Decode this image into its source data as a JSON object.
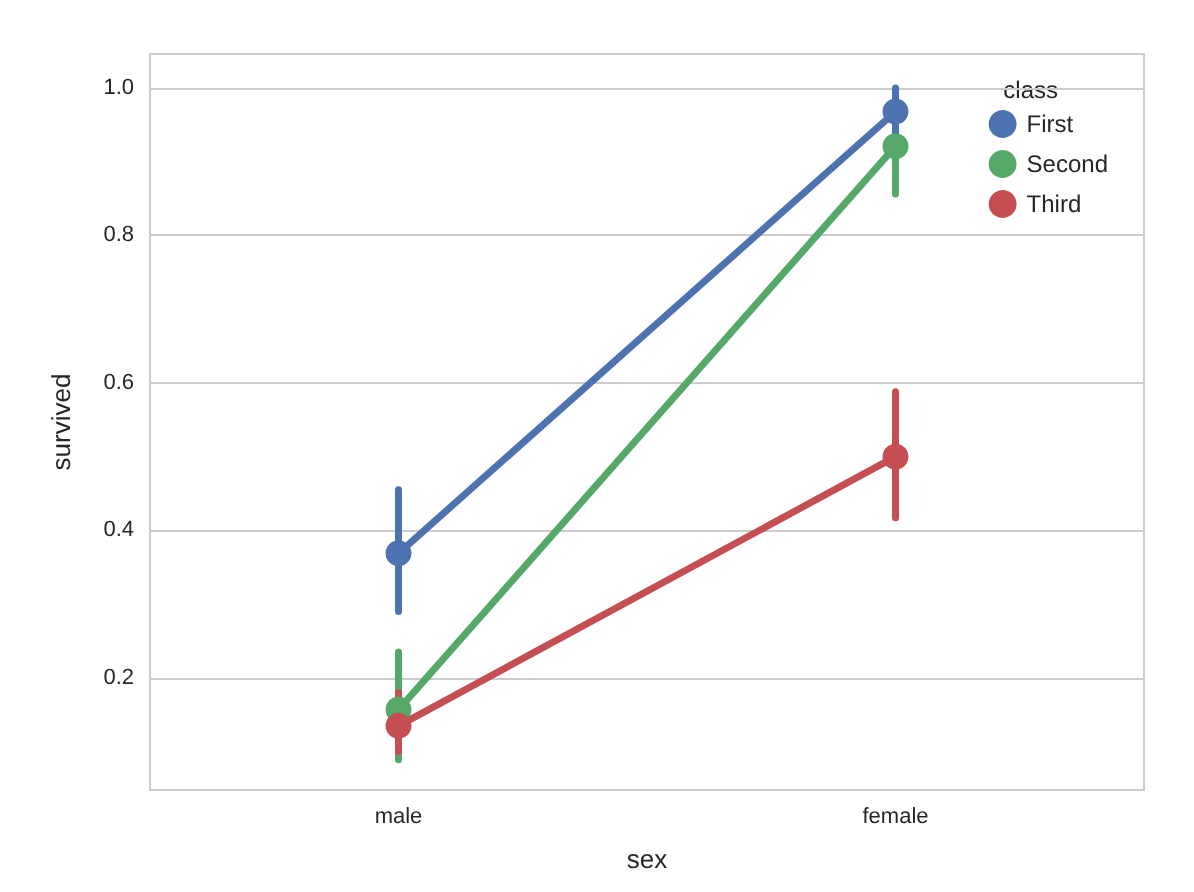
{
  "chart_data": {
    "type": "line",
    "xlabel": "sex",
    "ylabel": "survived",
    "legend_title": "class",
    "categories": [
      "male",
      "female"
    ],
    "series": [
      {
        "name": "First",
        "color": "#4c72b0",
        "values": [
          0.369,
          0.968
        ],
        "errors": [
          [
            0.29,
            0.455
          ],
          [
            0.935,
            1.0
          ]
        ]
      },
      {
        "name": "Second",
        "color": "#55a868",
        "values": [
          0.157,
          0.921
        ],
        "errors": [
          [
            0.089,
            0.235
          ],
          [
            0.856,
            0.921
          ]
        ]
      },
      {
        "name": "Third",
        "color": "#c44e52",
        "values": [
          0.135,
          0.5
        ],
        "errors": [
          [
            0.1,
            0.18
          ],
          [
            0.417,
            0.588
          ]
        ]
      }
    ],
    "ylim": [
      0.048,
      1.046
    ],
    "yticks": [
      0.2,
      0.4,
      0.6,
      0.8,
      {
        "value": 1,
        "label": "1.0"
      }
    ],
    "grid": "y",
    "legend": "top right",
    "marker": "circle",
    "line_style": "solid"
  }
}
